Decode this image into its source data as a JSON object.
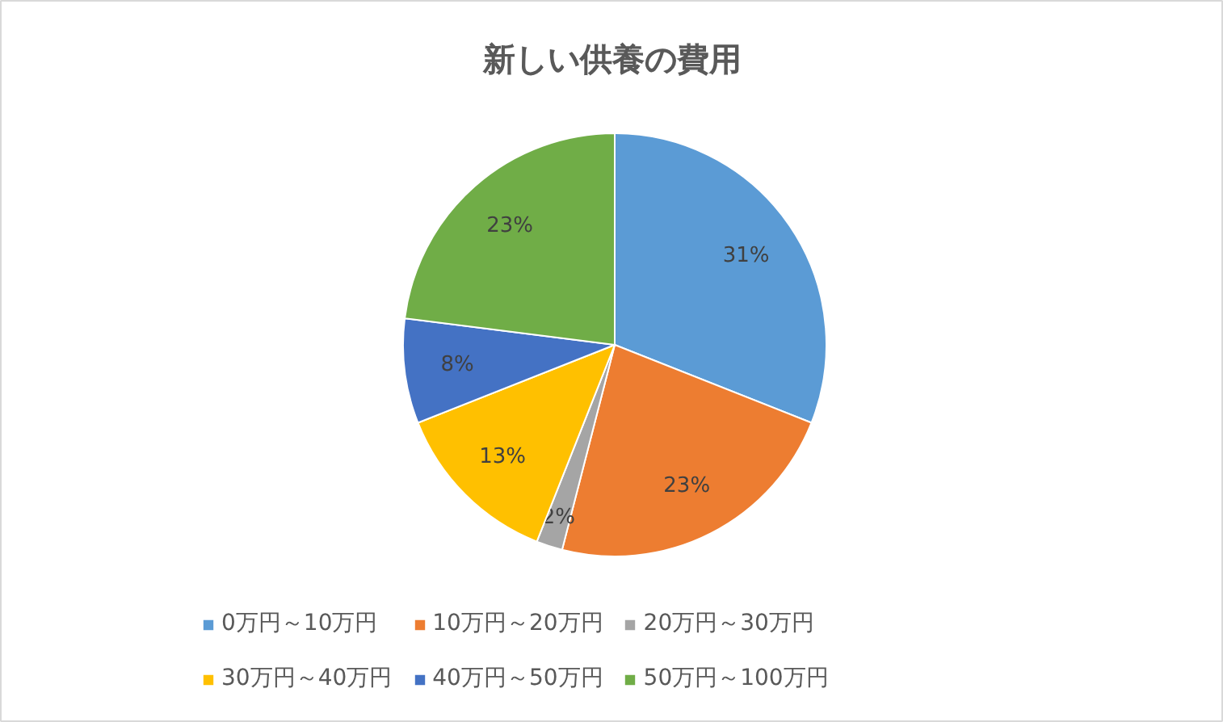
{
  "chart_data": {
    "type": "pie",
    "title": "新しい供養の費用",
    "categories": [
      "0万円～10万円",
      "10万円～20万円",
      "20万円～30万円",
      "30万円～40万円",
      "40万円～50万円",
      "50万円～100万円"
    ],
    "values": [
      31,
      23,
      2,
      13,
      8,
      23
    ],
    "colors": [
      "#5b9bd5",
      "#ed7d31",
      "#a5a5a5",
      "#ffc000",
      "#4472c4",
      "#70ad47"
    ],
    "value_labels": [
      "31%",
      "23%",
      "2%",
      "13%",
      "8%",
      "23%"
    ],
    "legend": "bottom"
  }
}
